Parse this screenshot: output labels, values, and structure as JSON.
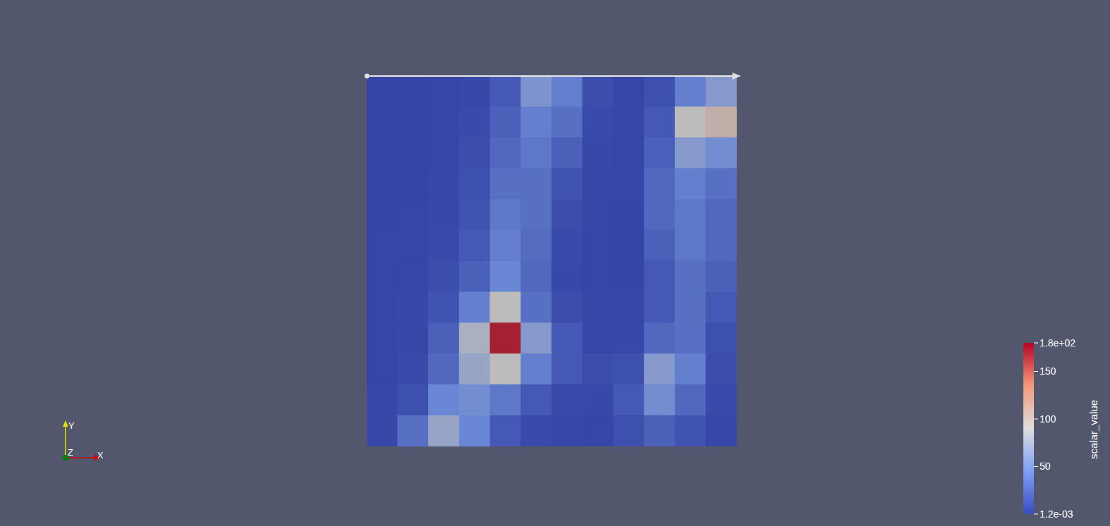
{
  "chart_data": {
    "type": "heatmap",
    "tick_labels": false,
    "cells": [
      [
        2,
        2,
        3,
        5,
        15,
        55,
        40,
        8,
        3,
        10,
        40,
        60
      ],
      [
        2,
        2,
        3,
        6,
        20,
        40,
        30,
        6,
        3,
        15,
        90,
        100
      ],
      [
        2,
        2,
        3,
        8,
        25,
        35,
        20,
        5,
        3,
        20,
        60,
        50
      ],
      [
        2,
        2,
        4,
        10,
        30,
        30,
        12,
        4,
        3,
        25,
        40,
        30
      ],
      [
        2,
        3,
        5,
        12,
        35,
        30,
        8,
        3,
        2,
        25,
        35,
        25
      ],
      [
        3,
        3,
        6,
        15,
        40,
        28,
        6,
        3,
        2,
        20,
        35,
        25
      ],
      [
        3,
        4,
        8,
        20,
        45,
        25,
        5,
        3,
        2,
        15,
        30,
        20
      ],
      [
        3,
        5,
        12,
        40,
        90,
        30,
        8,
        3,
        3,
        15,
        30,
        15
      ],
      [
        3,
        5,
        20,
        80,
        170,
        60,
        15,
        5,
        5,
        25,
        30,
        10
      ],
      [
        3,
        6,
        25,
        70,
        90,
        40,
        15,
        8,
        10,
        60,
        40,
        8
      ],
      [
        4,
        10,
        45,
        50,
        35,
        15,
        6,
        5,
        15,
        50,
        25,
        6
      ],
      [
        5,
        30,
        70,
        45,
        15,
        6,
        4,
        3,
        10,
        20,
        12,
        4
      ]
    ],
    "colorbar": {
      "title": "scalar_value",
      "range": [
        0.0012,
        180
      ],
      "ticks": [
        {
          "value": 0.0012,
          "label": "1.2e-03"
        },
        50,
        100,
        150,
        {
          "value": 180,
          "label": "1.8e+02"
        }
      ]
    },
    "orientation_axes": {
      "x": "X",
      "y": "Y",
      "z": "Z"
    }
  }
}
